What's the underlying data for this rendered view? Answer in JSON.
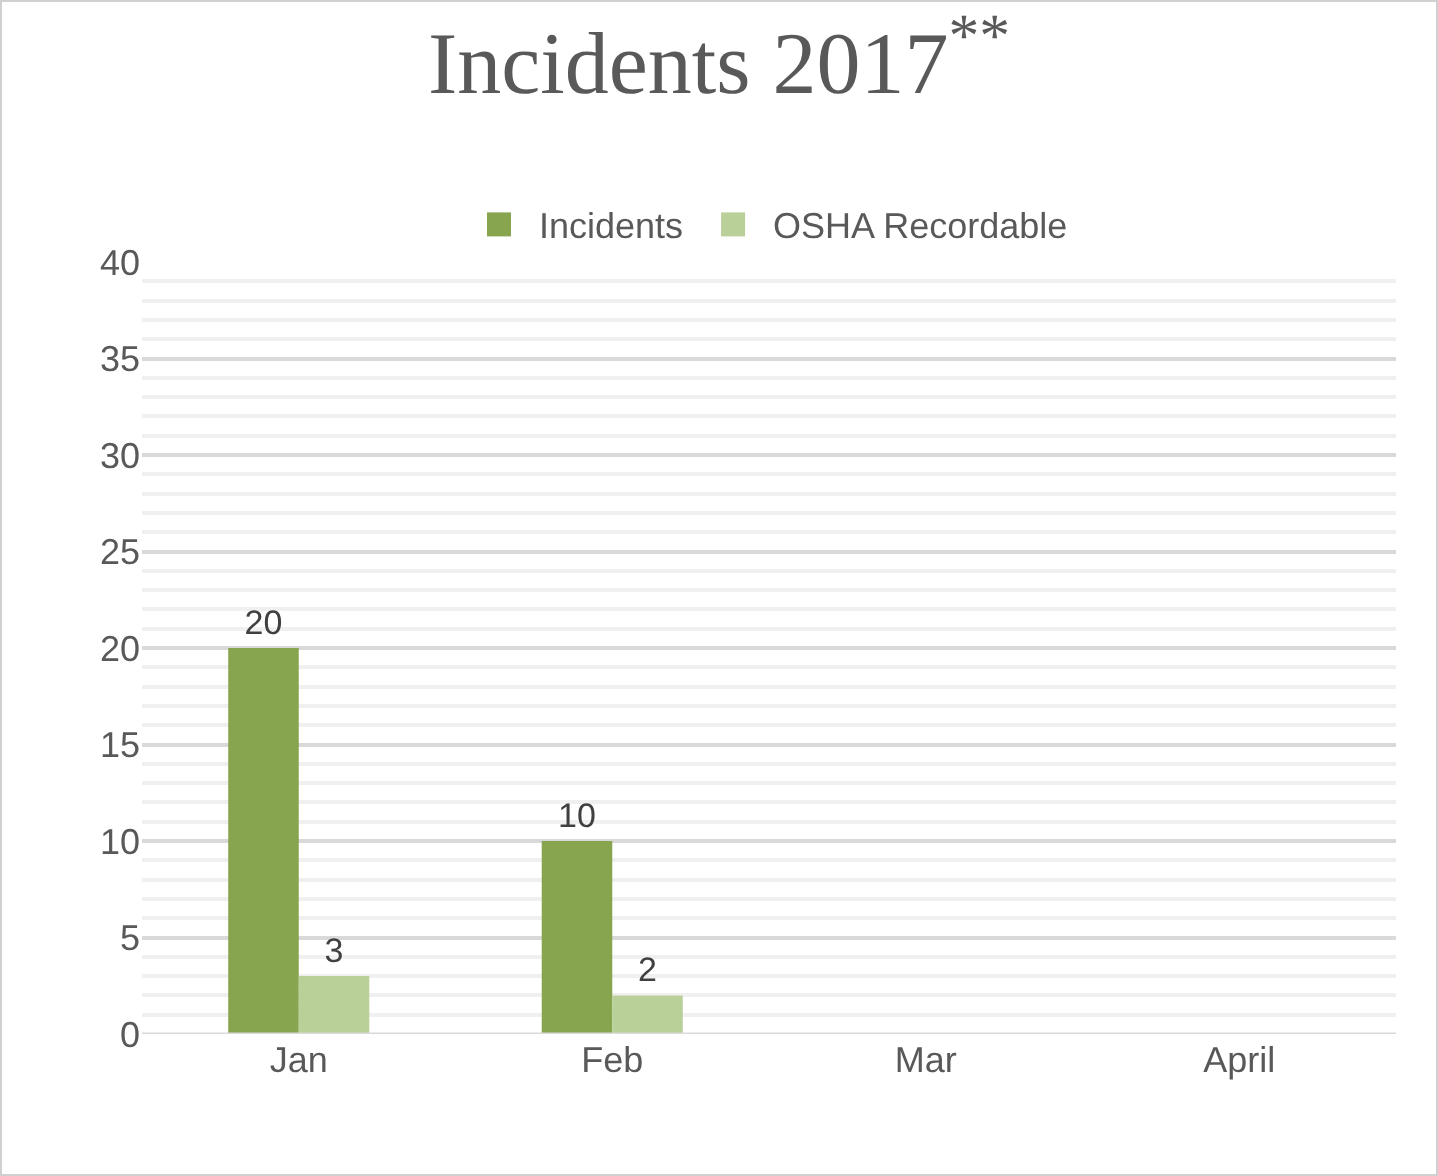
{
  "chart_data": {
    "type": "bar",
    "title": "Incidents 2017$^{**}$",
    "categories": [
      "Jan",
      "Feb",
      "Mar",
      "April"
    ],
    "series": [
      {
        "name": "Incidents",
        "color": "#87a44e",
        "values": [
          20,
          10,
          null,
          null
        ]
      },
      {
        "name": "OSHA Recordable",
        "color": "#b9d098",
        "values": [
          3,
          2,
          null,
          null
        ]
      }
    ],
    "ylim": [
      0,
      40
    ],
    "yticks": [
      0,
      5,
      10,
      15,
      20,
      25,
      30,
      35,
      40
    ],
    "grid": "y",
    "legend": "top",
    "data_labels": true
  }
}
